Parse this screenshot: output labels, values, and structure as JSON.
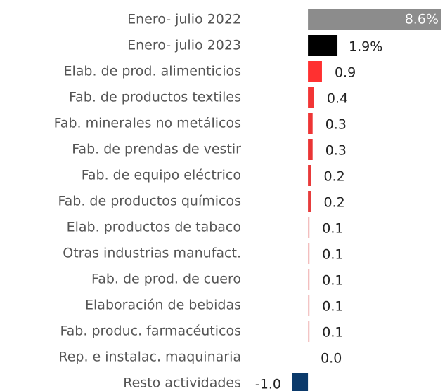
{
  "chart_data": {
    "type": "barh",
    "categories": [
      "Enero- julio 2022",
      "Enero- julio 2023",
      "Elab. de prod. alimenticios",
      "Fab. de productos textiles",
      "Fab. minerales no metálicos",
      "Fab. de prendas de vestir",
      "Fab. de equipo eléctrico",
      "Fab. de productos químicos",
      "Elab. productos de tabaco",
      "Otras industrias manufact.",
      "Fab. de prod. de cuero",
      "Elaboración de bebidas",
      "Fab. produc. farmacéuticos",
      "Rep. e instalac. maquinaria",
      "Resto actividades"
    ],
    "values": [
      8.6,
      1.9,
      0.9,
      0.4,
      0.3,
      0.3,
      0.2,
      0.2,
      0.1,
      0.1,
      0.1,
      0.1,
      0.1,
      0.0,
      -1.0
    ],
    "value_labels": [
      "8.6%",
      "1.9%",
      "0.9",
      "0.4",
      "0.3",
      "0.3",
      "0.2",
      "0.2",
      "0.1",
      "0.1",
      "0.1",
      "0.1",
      "0.1",
      "0.0",
      "-1.0"
    ],
    "colors": [
      "#8c8c8c",
      "#000000",
      "#ff3030",
      "#f23535",
      "#ee3535",
      "#ea3535",
      "#e83a3a",
      "#e63c3c",
      "#f2b8b8",
      "#f2b8b8",
      "#f2b8b8",
      "#f2c0c0",
      "#f2c0c0",
      "#f2c8c8",
      "#0b3a6b"
    ]
  }
}
